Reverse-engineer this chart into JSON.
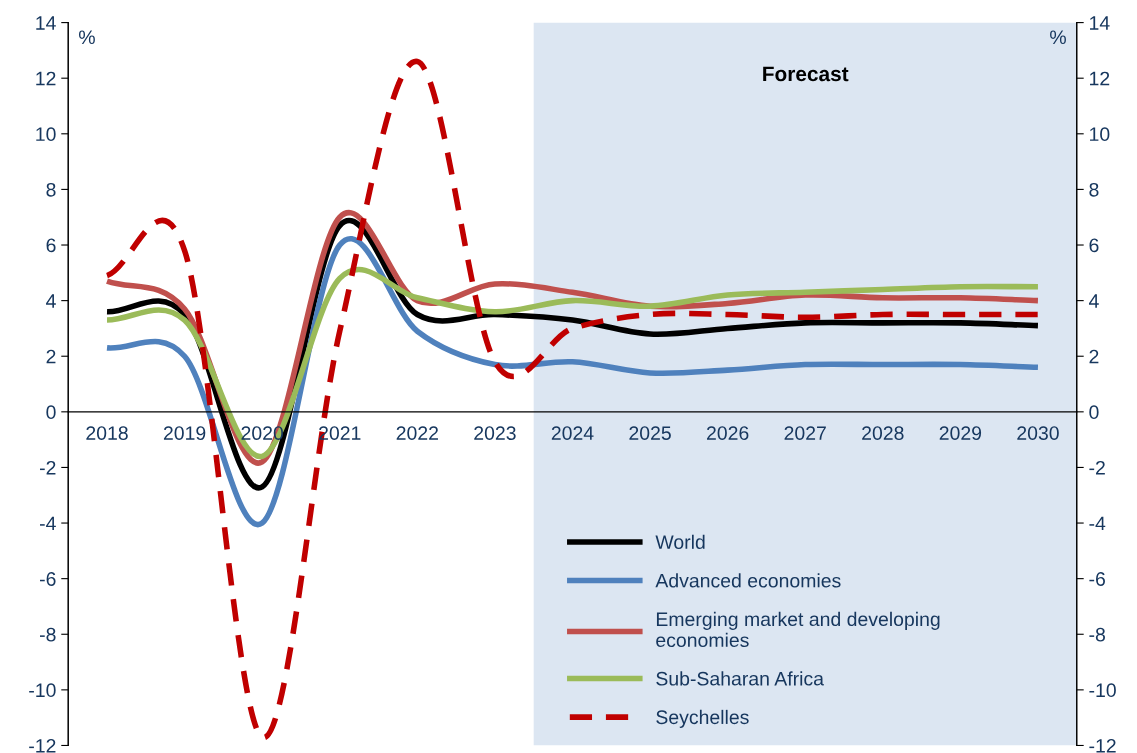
{
  "chart_data": {
    "type": "line",
    "categories": [
      "2018",
      "2019",
      "2020",
      "2021",
      "2022",
      "2023",
      "2024",
      "2025",
      "2026",
      "2027",
      "2028",
      "2029",
      "2030"
    ],
    "series": [
      {
        "name": "World",
        "color": "#000000",
        "line_style": "solid",
        "values": [
          3.6,
          3.5,
          -2.7,
          6.7,
          3.5,
          3.5,
          3.3,
          2.8,
          3.0,
          3.2,
          3.2,
          3.2,
          3.1
        ]
      },
      {
        "name": "Advanced economies",
        "color": "#4f81bd",
        "line_style": "solid",
        "values": [
          2.3,
          2.0,
          -4.0,
          6.0,
          2.9,
          1.7,
          1.8,
          1.4,
          1.5,
          1.7,
          1.7,
          1.7,
          1.6
        ]
      },
      {
        "name": "Emerging market and developing\neconomies",
        "color": "#c0504d",
        "line_style": "solid",
        "values": [
          4.7,
          3.7,
          -1.8,
          7.0,
          4.0,
          4.6,
          4.3,
          3.8,
          3.9,
          4.2,
          4.1,
          4.1,
          4.0
        ]
      },
      {
        "name": "Sub-Saharan Africa",
        "color": "#9bbb59",
        "line_style": "solid",
        "values": [
          3.3,
          3.3,
          -1.6,
          4.8,
          4.1,
          3.6,
          4.0,
          3.8,
          4.2,
          4.3,
          4.4,
          4.5,
          4.5
        ]
      },
      {
        "name": "Seychelles",
        "color": "#c00000",
        "line_style": "dashed",
        "values": [
          4.9,
          5.8,
          -11.7,
          2.9,
          12.6,
          1.8,
          3.0,
          3.5,
          3.5,
          3.4,
          3.5,
          3.5,
          3.5
        ]
      }
    ],
    "ylabel": "%",
    "y2label": "%",
    "ylim": [
      -12,
      14
    ],
    "yticks": [
      -12,
      -10,
      -8,
      -6,
      -4,
      -2,
      0,
      2,
      4,
      6,
      8,
      10,
      12,
      14
    ],
    "y2lim": [
      -12,
      14
    ],
    "y2ticks": [
      -12,
      -10,
      -8,
      -6,
      -4,
      -2,
      0,
      2,
      4,
      6,
      8,
      10,
      12,
      14
    ],
    "bands": [
      {
        "axis": "x",
        "from": "2024",
        "to": "2030",
        "label": "Forecast",
        "color": "#dce6f2"
      }
    ],
    "grid": false,
    "legend": "bottom right",
    "marker": "none"
  }
}
